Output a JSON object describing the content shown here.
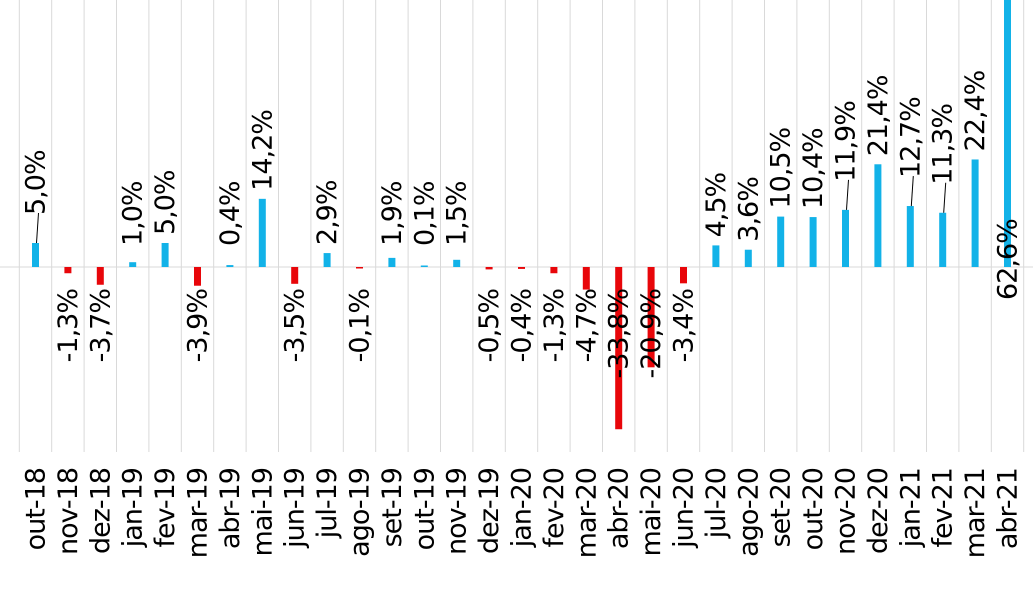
{
  "colors": {
    "positive": "#12b2e8",
    "negative": "#e8060a",
    "grid": "#d9d9d9"
  },
  "chart_data": {
    "type": "bar",
    "title": "",
    "xlabel": "",
    "ylabel": "",
    "grid": true,
    "categories": [
      "out-18",
      "nov-18",
      "dez-18",
      "jan-19",
      "fev-19",
      "mar-19",
      "abr-19",
      "mai-19",
      "jun-19",
      "jul-19",
      "ago-19",
      "set-19",
      "out-19",
      "nov-19",
      "dez-19",
      "jan-20",
      "fev-20",
      "mar-20",
      "abr-20",
      "mai-20",
      "jun-20",
      "jul-20",
      "ago-20",
      "set-20",
      "out-20",
      "nov-20",
      "dez-20",
      "jan-21",
      "fev-21",
      "mar-21",
      "abr-21"
    ],
    "values": [
      5.0,
      -1.3,
      -3.7,
      1.0,
      5.0,
      -3.9,
      0.4,
      14.2,
      -3.5,
      2.9,
      -0.1,
      1.9,
      0.1,
      1.5,
      -0.5,
      -0.4,
      -1.3,
      -4.7,
      -33.8,
      -20.9,
      -3.4,
      4.5,
      3.6,
      10.5,
      10.4,
      11.9,
      21.4,
      12.7,
      11.3,
      22.4,
      62.6
    ],
    "data_labels": [
      "5,0%",
      "-1,3%",
      "-3,7%",
      "1,0%",
      "5,0%",
      "-3,9%",
      "0,4%",
      "14,2%",
      "-3,5%",
      "2,9%",
      "-0,1%",
      "1,9%",
      "0,1%",
      "1,5%",
      "-0,5%",
      "-0,4%",
      "-1,3%",
      "-4,7%",
      "-33,8%",
      "-20,9%",
      "-3,4%",
      "4,5%",
      "3,6%",
      "10,5%",
      "10,4%",
      "11,9%",
      "21,4%",
      "12,7%",
      "11,3%",
      "22,4%",
      "62,6%"
    ]
  }
}
